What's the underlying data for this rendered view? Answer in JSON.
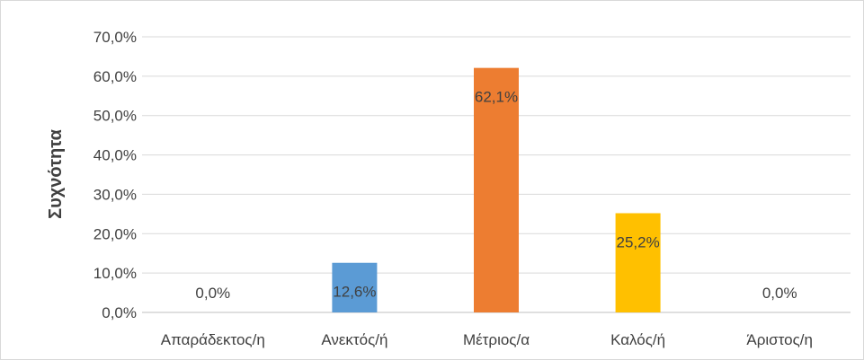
{
  "chart_data": {
    "type": "bar",
    "title": "",
    "xlabel": "",
    "ylabel": "Συχνότητα",
    "ylim": [
      0,
      70
    ],
    "yticks": [
      "0,0%",
      "10,0%",
      "20,0%",
      "30,0%",
      "40,0%",
      "50,0%",
      "60,0%",
      "70,0%"
    ],
    "categories": [
      "Απαράδεκτος/η",
      "Ανεκτός/ή",
      "Μέτριος/α",
      "Καλός/ή",
      "Άριστος/η"
    ],
    "values": [
      0.0,
      12.6,
      62.1,
      25.2,
      0.0
    ],
    "data_labels": [
      "0,0%",
      "12,6%",
      "62,1%",
      "25,2%",
      "0,0%"
    ],
    "colors": [
      "#5b9bd5",
      "#5b9bd5",
      "#ed7d31",
      "#ffc000",
      "#5b9bd5"
    ],
    "grid": true,
    "legend": "none"
  }
}
